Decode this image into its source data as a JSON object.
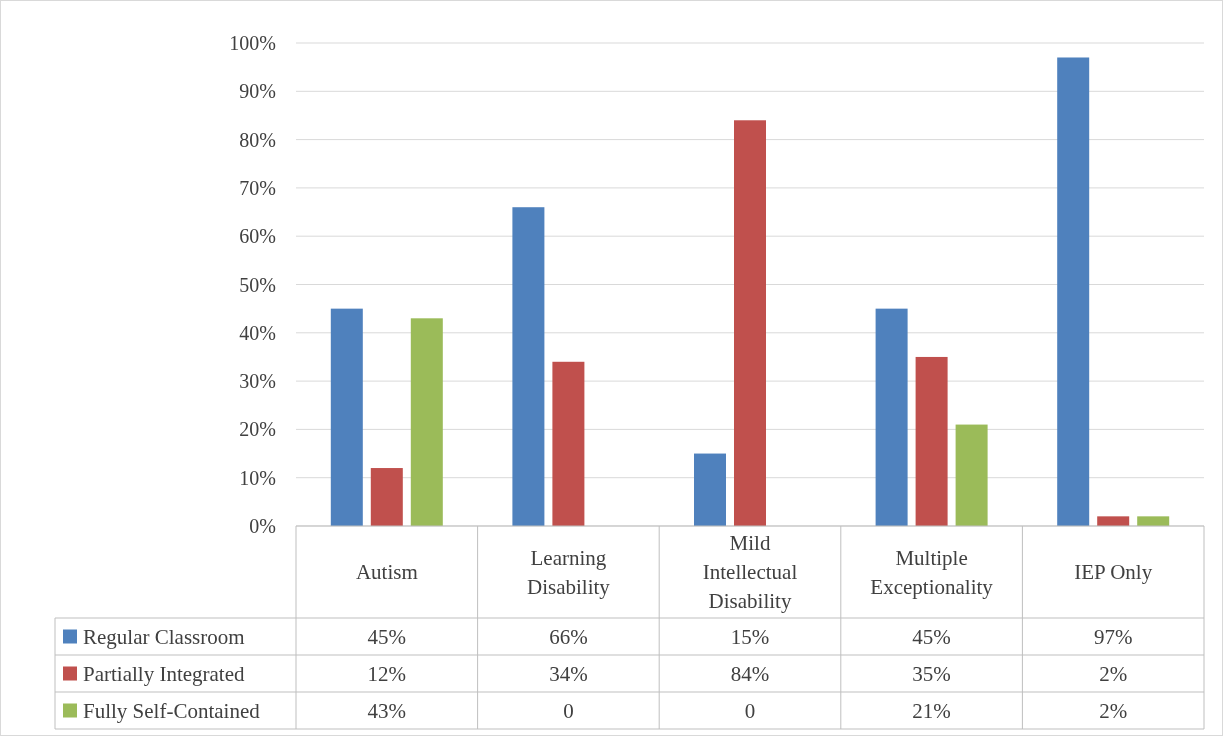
{
  "chart_data": {
    "type": "bar",
    "categories": [
      "Autism",
      "Learning Disability",
      "Mild Intellectual Disability",
      "Multiple Exceptionality",
      "IEP Only"
    ],
    "series": [
      {
        "name": "Regular Classroom",
        "color": "#4f81bd",
        "values": [
          45,
          66,
          15,
          45,
          97
        ],
        "value_labels": [
          "45%",
          "66%",
          "15%",
          "45%",
          "97%"
        ]
      },
      {
        "name": "Partially Integrated",
        "color": "#c0504d",
        "values": [
          12,
          34,
          84,
          35,
          2
        ],
        "value_labels": [
          "12%",
          "34%",
          "84%",
          "35%",
          "2%"
        ]
      },
      {
        "name": "Fully Self-Contained",
        "color": "#9bbb59",
        "values": [
          43,
          0,
          0,
          21,
          2
        ],
        "value_labels": [
          "43%",
          "0",
          "0",
          "21%",
          "2%"
        ]
      }
    ],
    "ylim": [
      0,
      100
    ],
    "yticks": [
      {
        "value": 0,
        "label": "0%"
      },
      {
        "value": 10,
        "label": "10%"
      },
      {
        "value": 20,
        "label": "20%"
      },
      {
        "value": 30,
        "label": "30%"
      },
      {
        "value": 40,
        "label": "40%"
      },
      {
        "value": 50,
        "label": "50%"
      },
      {
        "value": 60,
        "label": "60%"
      },
      {
        "value": 70,
        "label": "70%"
      },
      {
        "value": 80,
        "label": "80%"
      },
      {
        "value": 90,
        "label": "90%"
      },
      {
        "value": 100,
        "label": "100%"
      }
    ],
    "grid": "y",
    "legend": "bottom"
  }
}
